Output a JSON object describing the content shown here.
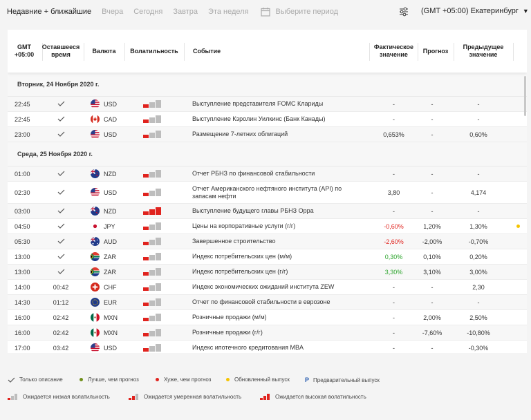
{
  "topbar": {
    "tabs": [
      "Недавние + ближайшие",
      "Вчера",
      "Сегодня",
      "Завтра",
      "Эта неделя"
    ],
    "period_placeholder": "Выберите период",
    "timezone": "(GMT +05:00) Екатеринбург"
  },
  "header": {
    "gmt": "GMT +05:00",
    "remaining": "Оставшееся время",
    "currency": "Валюта",
    "volatility": "Волатильность",
    "event": "Событие",
    "actual": "Фактическое значение",
    "forecast": "Прогноз",
    "previous": "Предыдущее значение"
  },
  "days": [
    {
      "date": "Вторник, 24 Ноября 2020 г.",
      "rows": [
        {
          "time": "22:45",
          "remaining": "check",
          "flag": "us",
          "currency": "USD",
          "volatility": 1,
          "event": "Выступление представителя FOMC Клариды",
          "actual": "-",
          "actual_color": "",
          "forecast": "-",
          "previous": "-",
          "dot": ""
        },
        {
          "time": "22:45",
          "remaining": "check",
          "flag": "ca",
          "currency": "CAD",
          "volatility": 1,
          "event": "Выступление Кэролин Уилкинс (Банк Канады)",
          "actual": "-",
          "actual_color": "",
          "forecast": "-",
          "previous": "-",
          "dot": ""
        },
        {
          "time": "23:00",
          "remaining": "check",
          "flag": "us",
          "currency": "USD",
          "volatility": 1,
          "event": "Размещение 7-летних облигаций",
          "actual": "0,653%",
          "actual_color": "",
          "forecast": "-",
          "previous": "0,60%",
          "dot": ""
        }
      ]
    },
    {
      "date": "Среда, 25 Ноября 2020 г.",
      "rows": [
        {
          "time": "01:00",
          "remaining": "check",
          "flag": "nz",
          "currency": "NZD",
          "volatility": 1,
          "event": "Отчет РБНЗ по финансовой стабильности",
          "actual": "-",
          "actual_color": "",
          "forecast": "-",
          "previous": "-",
          "dot": ""
        },
        {
          "time": "02:30",
          "remaining": "check",
          "flag": "us",
          "currency": "USD",
          "volatility": 1,
          "event": "Отчет Американского нефтяного института (API) по запасам нефти",
          "actual": "3,80",
          "actual_color": "",
          "forecast": "-",
          "previous": "4,174",
          "dot": ""
        },
        {
          "time": "03:00",
          "remaining": "check",
          "flag": "nz",
          "currency": "NZD",
          "volatility": 3,
          "event": "Выступление будущего главы РБНЗ Орра",
          "actual": "-",
          "actual_color": "",
          "forecast": "-",
          "previous": "-",
          "dot": ""
        },
        {
          "time": "04:50",
          "remaining": "check",
          "flag": "jp",
          "currency": "JPY",
          "volatility": 1,
          "event": "Цены на корпоративные услуги (г/г)",
          "actual": "-0,60%",
          "actual_color": "neg",
          "forecast": "1,20%",
          "previous": "1,30%",
          "dot": "#f5c400"
        },
        {
          "time": "05:30",
          "remaining": "check",
          "flag": "au",
          "currency": "AUD",
          "volatility": 1,
          "event": "Завершенное строительство",
          "actual": "-2,60%",
          "actual_color": "neg",
          "forecast": "-2,00%",
          "previous": "-0,70%",
          "dot": ""
        },
        {
          "time": "13:00",
          "remaining": "check",
          "flag": "za",
          "currency": "ZAR",
          "volatility": 1,
          "event": "Индекс потребительских цен (м/м)",
          "actual": "0,30%",
          "actual_color": "pos",
          "forecast": "0,10%",
          "previous": "0,20%",
          "dot": ""
        },
        {
          "time": "13:00",
          "remaining": "check",
          "flag": "za",
          "currency": "ZAR",
          "volatility": 1,
          "event": "Индекс потребительских цен (г/г)",
          "actual": "3,30%",
          "actual_color": "pos",
          "forecast": "3,10%",
          "previous": "3,00%",
          "dot": ""
        },
        {
          "time": "14:00",
          "remaining": "00:42",
          "flag": "ch",
          "currency": "CHF",
          "volatility": 1,
          "event": "Индекс экономических ожиданий института ZEW",
          "actual": "-",
          "actual_color": "",
          "forecast": "-",
          "previous": "2,30",
          "dot": ""
        },
        {
          "time": "14:30",
          "remaining": "01:12",
          "flag": "eu",
          "currency": "EUR",
          "volatility": 1,
          "event": "Отчет по финансовой стабильности в еврозоне",
          "actual": "-",
          "actual_color": "",
          "forecast": "-",
          "previous": "-",
          "dot": ""
        },
        {
          "time": "16:00",
          "remaining": "02:42",
          "flag": "mx",
          "currency": "MXN",
          "volatility": 1,
          "event": "Розничные продажи (м/м)",
          "actual": "-",
          "actual_color": "",
          "forecast": "2,00%",
          "previous": "2,50%",
          "dot": ""
        },
        {
          "time": "16:00",
          "remaining": "02:42",
          "flag": "mx",
          "currency": "MXN",
          "volatility": 1,
          "event": "Розничные продажи (г/г)",
          "actual": "-",
          "actual_color": "",
          "forecast": "-7,60%",
          "previous": "-10,80%",
          "dot": ""
        },
        {
          "time": "17:00",
          "remaining": "03:42",
          "flag": "us",
          "currency": "USD",
          "volatility": 1,
          "event": "Индекс ипотечного кредитования MBA",
          "actual": "-",
          "actual_color": "",
          "forecast": "-",
          "previous": "-0,30%",
          "dot": ""
        }
      ]
    }
  ],
  "legend": {
    "description_only": "Только описание",
    "better": "Лучше, чем прогноз",
    "worse": "Хуже, чем прогноз",
    "updated": "Обновленный выпуск",
    "preliminary": "Предварительный выпуск",
    "preliminary_mark": "P",
    "low_vol": "Ожидается низкая волатильность",
    "mid_vol": "Ожидается умеренная волатильность",
    "high_vol": "Ожидается высокая волатильность",
    "colors": {
      "better": "#6f8f1a",
      "worse": "#e0231e",
      "updated": "#f5c400"
    }
  }
}
